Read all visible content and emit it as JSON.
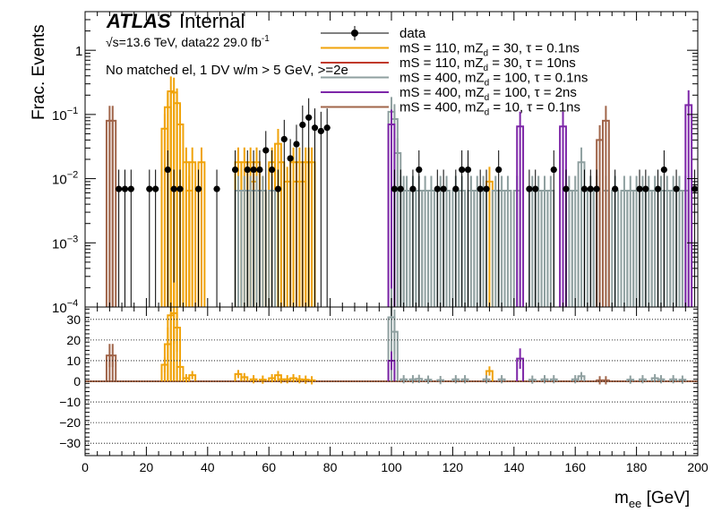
{
  "chart_data": {
    "type": "histogram",
    "experiment_label": "ATLAS",
    "experiment_status": "Internal",
    "energy_label": "√s=13.6 TeV, data22 29.0 fb",
    "lumi_unit_superscript": "-1",
    "selection_label": "No matched el, 1 DV w/m > 5 GeV, >=2e",
    "ylabel_top": "Frac. Events",
    "xlabel_main": "m",
    "xlabel_subscript": "ee",
    "xlabel_unit": " [GeV]",
    "x_range": [
      0,
      200
    ],
    "x_ticks": [
      "0",
      "20",
      "40",
      "60",
      "80",
      "100",
      "120",
      "140",
      "160",
      "180",
      "200"
    ],
    "y_top_scale": "log",
    "y_top_range": [
      0.0001,
      4
    ],
    "y_top_ticks": [
      {
        "value": 1,
        "base": "1",
        "exp": ""
      },
      {
        "value": 0.1,
        "base": "10",
        "exp": "−1"
      },
      {
        "value": 0.01,
        "base": "10",
        "exp": "−2"
      },
      {
        "value": 0.001,
        "base": "10",
        "exp": "−3"
      },
      {
        "value": 0.0001,
        "base": "10",
        "exp": "−4"
      }
    ],
    "y_bottom_range": [
      -36,
      36
    ],
    "y_bottom_ticks": [
      "30",
      "20",
      "10",
      "0",
      "−10",
      "−20",
      "−30"
    ],
    "y_bottom_tick_values": [
      30,
      20,
      10,
      0,
      -10,
      -20,
      -30
    ],
    "bin_width": 2,
    "legend_position": "top-right",
    "legend": [
      {
        "label": "data",
        "color": "#000000",
        "kind": "marker"
      },
      {
        "pre": "mS = 110, mZ",
        "sub": "d",
        "post": " = 30, τ = 0.1ns",
        "color": "#f0a30a",
        "kind": "line"
      },
      {
        "pre": "mS = 110, mZ",
        "sub": "d",
        "post": " = 30, τ = 10ns",
        "color": "#c0392b",
        "kind": "line"
      },
      {
        "pre": "mS = 400, mZ",
        "sub": "d",
        "post": " = 100, τ = 0.1ns",
        "color": "#8fa0a0",
        "kind": "line"
      },
      {
        "pre": "mS = 400, mZ",
        "sub": "d",
        "post": " = 100, τ = 2ns",
        "color": "#7d26a8",
        "kind": "line"
      },
      {
        "pre": "mS = 400, mZ",
        "sub": "d",
        "post": " = 10, τ = 0.1ns",
        "color": "#a0654a",
        "kind": "line"
      }
    ],
    "data_points": [
      [
        11,
        0.0069
      ],
      [
        13,
        0.0069
      ],
      [
        15,
        0.0069
      ],
      [
        21,
        0.0069
      ],
      [
        23,
        0.0069
      ],
      [
        27,
        0.0138
      ],
      [
        29,
        0.0069
      ],
      [
        31,
        0.0069
      ],
      [
        37,
        0.0069
      ],
      [
        43,
        0.0069
      ],
      [
        49,
        0.0138
      ],
      [
        53,
        0.0138
      ],
      [
        55,
        0.0138
      ],
      [
        57,
        0.0138
      ],
      [
        59,
        0.0276
      ],
      [
        61,
        0.0138
      ],
      [
        63,
        0.0069
      ],
      [
        65,
        0.0413
      ],
      [
        67,
        0.0207
      ],
      [
        69,
        0.0345
      ],
      [
        71,
        0.0689
      ],
      [
        73,
        0.0896
      ],
      [
        75,
        0.062
      ],
      [
        77,
        0.0551
      ],
      [
        79,
        0.062
      ],
      [
        101,
        0.0069
      ],
      [
        103,
        0.0069
      ],
      [
        107,
        0.0069
      ],
      [
        109,
        0.0138
      ],
      [
        115,
        0.0069
      ],
      [
        117,
        0.0069
      ],
      [
        121,
        0.0069
      ],
      [
        123,
        0.0138
      ],
      [
        125,
        0.0138
      ],
      [
        129,
        0.0069
      ],
      [
        131,
        0.0069
      ],
      [
        135,
        0.0138
      ],
      [
        145,
        0.0069
      ],
      [
        147,
        0.0069
      ],
      [
        153,
        0.0138
      ],
      [
        157,
        0.0069
      ],
      [
        163,
        0.0069
      ],
      [
        165,
        0.0069
      ],
      [
        167,
        0.0069
      ],
      [
        173,
        0.0069
      ],
      [
        181,
        0.0069
      ],
      [
        183,
        0.0069
      ],
      [
        187,
        0.0069
      ],
      [
        189,
        0.0138
      ],
      [
        193,
        0.0069
      ],
      [
        199,
        0.0069
      ]
    ],
    "series": [
      {
        "name": "mS = 110, mZd = 30, τ = 0.1ns",
        "color": "#f0a30a",
        "bins": [
          [
            26,
            0.06
          ],
          [
            27,
            0.13
          ],
          [
            28,
            0.23
          ],
          [
            29,
            0.22
          ],
          [
            30,
            0.15
          ],
          [
            31,
            0.07
          ],
          [
            33,
            0.018
          ],
          [
            34,
            0.0065
          ],
          [
            35,
            0.018
          ],
          [
            38,
            0.018
          ],
          [
            50,
            0.018
          ],
          [
            52,
            0.018
          ],
          [
            54,
            0.018
          ],
          [
            55,
            0.009
          ],
          [
            56,
            0.018
          ],
          [
            58,
            0.0065
          ],
          [
            61,
            0.018
          ],
          [
            63,
            0.035
          ],
          [
            64,
            0.018
          ],
          [
            66,
            0.009
          ],
          [
            68,
            0.018
          ],
          [
            69,
            0.009
          ],
          [
            70,
            0.018
          ],
          [
            71,
            0.009
          ],
          [
            72,
            0.018
          ],
          [
            73,
            0.018
          ],
          [
            74,
            0.018
          ],
          [
            132,
            0.009
          ]
        ]
      },
      {
        "name": "mS = 110, mZd = 30, τ = 10ns",
        "color": "#c0392b",
        "bins": []
      },
      {
        "name": "mS = 400, mZd = 100, τ = 0.1ns",
        "color": "#8fa0a0",
        "bins": [
          [
            50,
            0.0065
          ],
          [
            52,
            0.0065
          ],
          [
            54,
            0.0065
          ],
          [
            56,
            0.0065
          ],
          [
            58,
            0.0065
          ],
          [
            61,
            0.0065
          ],
          [
            100,
            0.11
          ],
          [
            101,
            0.085
          ],
          [
            102,
            0.025
          ],
          [
            103,
            0.0065
          ],
          [
            104,
            0.0065
          ],
          [
            105,
            0.0065
          ],
          [
            107,
            0.0065
          ],
          [
            109,
            0.0065
          ],
          [
            111,
            0.0065
          ],
          [
            113,
            0.0065
          ],
          [
            116,
            0.0065
          ],
          [
            118,
            0.0065
          ],
          [
            121,
            0.0065
          ],
          [
            123,
            0.0065
          ],
          [
            126,
            0.0065
          ],
          [
            128,
            0.0065
          ],
          [
            130,
            0.0065
          ],
          [
            134,
            0.0065
          ],
          [
            136,
            0.0065
          ],
          [
            138,
            0.0065
          ],
          [
            141,
            0.0065
          ],
          [
            146,
            0.0065
          ],
          [
            148,
            0.0065
          ],
          [
            150,
            0.0065
          ],
          [
            152,
            0.0065
          ],
          [
            158,
            0.0065
          ],
          [
            160,
            0.0065
          ],
          [
            162,
            0.018
          ],
          [
            165,
            0.0065
          ],
          [
            167,
            0.0065
          ],
          [
            170,
            0.0065
          ],
          [
            173,
            0.0065
          ],
          [
            176,
            0.0065
          ],
          [
            178,
            0.0065
          ],
          [
            180,
            0.0065
          ],
          [
            182,
            0.0065
          ],
          [
            184,
            0.0065
          ],
          [
            186,
            0.0065
          ],
          [
            188,
            0.0065
          ],
          [
            190,
            0.0065
          ],
          [
            192,
            0.0065
          ],
          [
            194,
            0.0065
          ],
          [
            196,
            0.0065
          ]
        ]
      },
      {
        "name": "mS = 400, mZd = 100, τ = 2ns",
        "color": "#7d26a8",
        "bins": [
          [
            100,
            0.07
          ],
          [
            142,
            0.065
          ],
          [
            156,
            0.065
          ],
          [
            197,
            0.14
          ]
        ]
      },
      {
        "name": "mS = 400, mZd = 10, τ = 0.1ns",
        "color": "#a0654a",
        "bins": [
          [
            8,
            0.08
          ],
          [
            9,
            0.08
          ],
          [
            168,
            0.04
          ],
          [
            170,
            0.08
          ]
        ]
      }
    ],
    "ratio_series": [
      {
        "color": "#a0654a",
        "bins": [
          [
            8,
            12.5
          ],
          [
            9,
            12.5
          ],
          [
            168,
            0.5
          ],
          [
            170,
            0.5
          ]
        ]
      },
      {
        "color": "#f0a30a",
        "bins": [
          [
            26,
            8
          ],
          [
            27,
            18
          ],
          [
            28,
            32
          ],
          [
            29,
            33
          ],
          [
            30,
            26
          ],
          [
            31,
            7
          ],
          [
            33,
            1.5
          ],
          [
            35,
            3
          ],
          [
            50,
            3.5
          ],
          [
            52,
            2
          ],
          [
            55,
            1
          ],
          [
            58,
            0.8
          ],
          [
            61,
            1.5
          ],
          [
            63,
            3
          ],
          [
            64,
            1
          ],
          [
            66,
            1
          ],
          [
            68,
            1.5
          ],
          [
            70,
            1
          ],
          [
            72,
            0.8
          ],
          [
            74,
            0.5
          ],
          [
            132,
            5
          ]
        ]
      },
      {
        "color": "#8fa0a0",
        "bins": [
          [
            100,
            31
          ],
          [
            101,
            24
          ],
          [
            104,
            1
          ],
          [
            107,
            1
          ],
          [
            109,
            1.2
          ],
          [
            112,
            0.8
          ],
          [
            116,
            0.6
          ],
          [
            121,
            1
          ],
          [
            124,
            1
          ],
          [
            131,
            1
          ],
          [
            136,
            1
          ],
          [
            146,
            0.8
          ],
          [
            150,
            1
          ],
          [
            153,
            1
          ],
          [
            160,
            1
          ],
          [
            162,
            2.5
          ],
          [
            178,
            0.8
          ],
          [
            182,
            1
          ],
          [
            186,
            1.5
          ],
          [
            188,
            1
          ],
          [
            192,
            1
          ],
          [
            195,
            0.8
          ]
        ]
      },
      {
        "color": "#7d26a8",
        "bins": [
          [
            100,
            10
          ],
          [
            142,
            11
          ]
        ]
      }
    ]
  }
}
